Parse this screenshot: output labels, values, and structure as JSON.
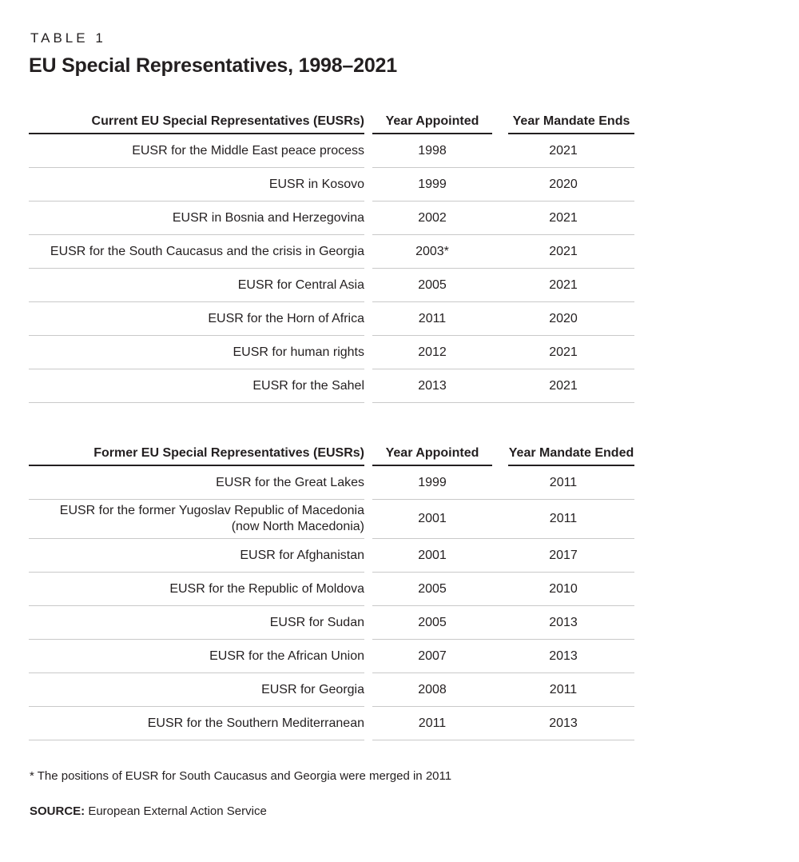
{
  "page": {
    "table_label": "TABLE 1",
    "title": "EU Special Representatives, 1998–2021",
    "footnote": "* The positions of EUSR for South Caucasus and Georgia were merged in 2011",
    "source_label": "SOURCE:",
    "source_text": " European External Action Service"
  },
  "colors": {
    "text": "#231f20",
    "header_rule": "#231f20",
    "row_rule": "#c9c9c9",
    "background": "#ffffff"
  },
  "chart_data": {
    "type": "table",
    "title": "EU Special Representatives, 1998–2021"
  },
  "tables": [
    {
      "id": "current",
      "headers": [
        "Current EU Special Representatives (EUSRs)",
        "Year Appointed",
        "Year Mandate Ends"
      ],
      "rows": [
        {
          "name": "EUSR for the Middle East peace process",
          "appointed": "1998",
          "mandate": "2021"
        },
        {
          "name": "EUSR in Kosovo",
          "appointed": "1999",
          "mandate": "2020"
        },
        {
          "name": "EUSR in Bosnia and Herzegovina",
          "appointed": "2002",
          "mandate": "2021"
        },
        {
          "name": "EUSR for the South Caucasus and the crisis in Georgia",
          "appointed": "2003*",
          "mandate": "2021"
        },
        {
          "name": "EUSR for Central Asia",
          "appointed": "2005",
          "mandate": "2021"
        },
        {
          "name": "EUSR for the Horn of Africa",
          "appointed": "2011",
          "mandate": "2020"
        },
        {
          "name": "EUSR for human rights",
          "appointed": "2012",
          "mandate": "2021"
        },
        {
          "name": "EUSR for the Sahel",
          "appointed": "2013",
          "mandate": "2021"
        }
      ]
    },
    {
      "id": "former",
      "headers": [
        "Former EU Special Representatives (EUSRs)",
        "Year Appointed",
        "Year Mandate Ended"
      ],
      "rows": [
        {
          "name": "EUSR for the Great Lakes",
          "appointed": "1999",
          "mandate": "2011"
        },
        {
          "name": "EUSR for the former Yugoslav Republic of Macedonia\n(now North Macedonia)",
          "appointed": "2001",
          "mandate": "2011"
        },
        {
          "name": "EUSR for Afghanistan",
          "appointed": "2001",
          "mandate": "2017"
        },
        {
          "name": "EUSR for the Republic of Moldova",
          "appointed": "2005",
          "mandate": "2010"
        },
        {
          "name": "EUSR for Sudan",
          "appointed": "2005",
          "mandate": "2013"
        },
        {
          "name": "EUSR for the African Union",
          "appointed": "2007",
          "mandate": "2013"
        },
        {
          "name": "EUSR for Georgia",
          "appointed": "2008",
          "mandate": "2011"
        },
        {
          "name": "EUSR for the Southern Mediterranean",
          "appointed": "2011",
          "mandate": "2013"
        }
      ]
    }
  ]
}
